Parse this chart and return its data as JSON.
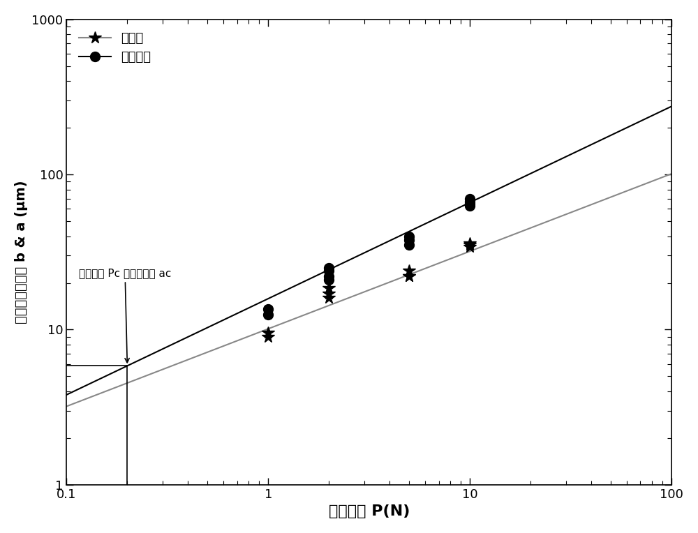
{
  "xlim": [
    0.1,
    100
  ],
  "ylim": [
    1,
    1000
  ],
  "xlabel": "加载载荷 P(N)",
  "ylabel": "压痕和裂纹半长 b & a (μm)",
  "legend_star_label": "主曲线",
  "legend_dot_label": "裂纹曲线",
  "annotation_text": "临界载荷 Pc 和临界裂纹 ac",
  "pc_x": 0.2,
  "star_data": {
    "x": [
      1.0,
      1.0,
      2.0,
      2.0,
      2.0,
      5.0,
      5.0,
      5.0,
      10.0,
      10.0,
      10.0
    ],
    "y": [
      9.5,
      9.0,
      17.0,
      18.5,
      16.0,
      22.0,
      24.0,
      22.0,
      35.0,
      36.0,
      34.0
    ]
  },
  "dot_data": {
    "x": [
      1.0,
      1.0,
      2.0,
      2.0,
      2.0,
      2.0,
      5.0,
      5.0,
      5.0,
      10.0,
      10.0,
      10.0,
      10.0
    ],
    "y": [
      13.5,
      12.5,
      22.0,
      24.0,
      25.0,
      21.0,
      35.0,
      40.0,
      38.0,
      63.0,
      67.0,
      70.0,
      65.0
    ]
  },
  "main_line": {
    "y_at_01": 3.2,
    "slope": 0.5,
    "color": "#888888"
  },
  "crack_line": {
    "y_at_01": 3.8,
    "slope": 0.62,
    "color": "#000000"
  },
  "background_color": "#ffffff",
  "star_color": "#000000",
  "dot_color": "#000000",
  "linewidth_main": 1.5,
  "linewidth_crack": 1.5
}
